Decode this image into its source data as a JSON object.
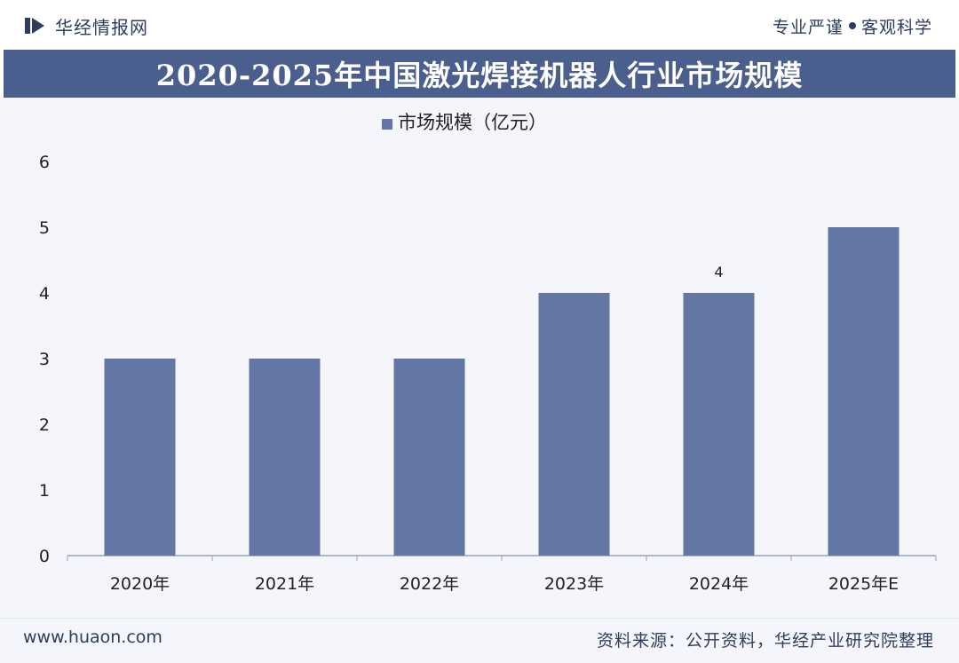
{
  "header": {
    "brand_name": "华经情报网",
    "slogan_left": "专业严谨",
    "slogan_right": "客观科学"
  },
  "colors": {
    "title_band": "#4b5f8e",
    "bar": "#6477a4",
    "text": "#2f3d5c"
  },
  "chart_data": {
    "type": "bar",
    "title": "2020-2025年中国激光焊接机器人行业市场规模",
    "categories": [
      "2020年",
      "2021年",
      "2022年",
      "2023年",
      "2024年",
      "2025年E"
    ],
    "series": [
      {
        "name": "市场规模（亿元）",
        "values": [
          3,
          3,
          3,
          4,
          4,
          5
        ]
      }
    ],
    "data_labels": [
      {
        "category": "2024年",
        "text": "4"
      }
    ],
    "ylim": [
      0,
      6
    ],
    "yticks": [
      0,
      1,
      2,
      3,
      4,
      5,
      6
    ],
    "legend_position": "top-center",
    "grid": false
  },
  "footer": {
    "website": "www.huaon.com",
    "source": "资料来源：公开资料，华经产业研究院整理"
  }
}
